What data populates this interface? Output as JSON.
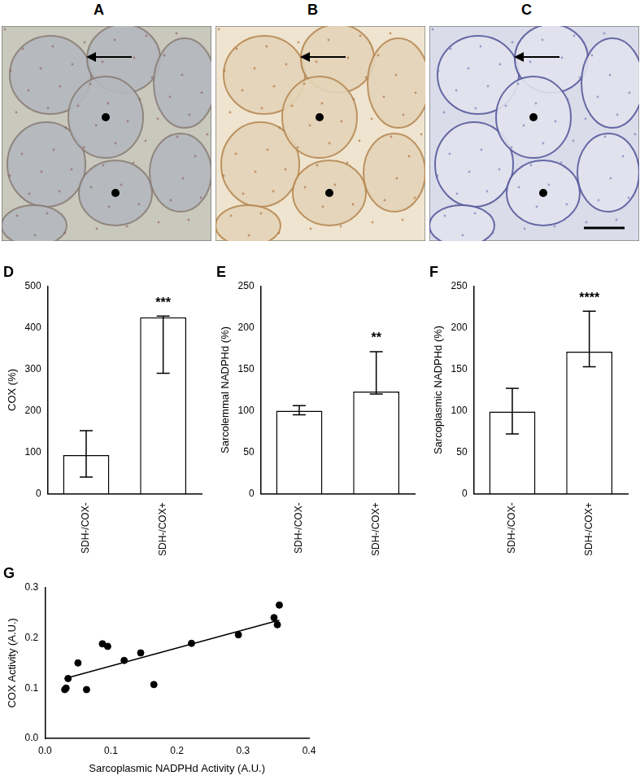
{
  "panels": [
    {
      "label": "A"
    },
    {
      "label": "B"
    },
    {
      "label": "C"
    }
  ],
  "chart_data": [
    {
      "type": "bar",
      "title": "D",
      "y_label": "COX (%)",
      "categories": [
        "SDH-/COX-",
        "SDH-/COX+"
      ],
      "values": [
        93,
        425
      ],
      "errors": [
        {
          "low": 40,
          "high": 152
        },
        {
          "low": 290,
          "high": 428
        }
      ],
      "color": "#ffffff",
      "ylim": [
        0,
        500
      ],
      "yticks": [
        0,
        100,
        200,
        300,
        400,
        500
      ],
      "grid": false,
      "annotations": [
        {
          "text": "***",
          "category": "SDH-/COX+"
        }
      ]
    },
    {
      "type": "bar",
      "title": "E",
      "y_label": "Sarcolemmal NADPHd (%)",
      "categories": [
        "SDH-/COX-",
        "SDH-/COX+"
      ],
      "values": [
        100,
        123
      ],
      "errors": [
        {
          "low": 95,
          "high": 106
        },
        {
          "low": 120,
          "high": 171
        }
      ],
      "color": "#ffffff",
      "ylim": [
        0,
        250
      ],
      "yticks": [
        0,
        50,
        100,
        150,
        200,
        250
      ],
      "grid": false,
      "annotations": [
        {
          "text": "**",
          "category": "SDH-/COX+"
        }
      ]
    },
    {
      "type": "bar",
      "title": "F",
      "y_label": "Sarcoplasmic NADPHd (%)",
      "categories": [
        "SDH-/COX-",
        "SDH-/COX+"
      ],
      "values": [
        99,
        171
      ],
      "errors": [
        {
          "low": 72,
          "high": 127
        },
        {
          "low": 153,
          "high": 220
        }
      ],
      "color": "#ffffff",
      "ylim": [
        0,
        250
      ],
      "yticks": [
        0,
        50,
        100,
        150,
        200,
        250
      ],
      "grid": false,
      "annotations": [
        {
          "text": "****",
          "category": "SDH-/COX+"
        }
      ]
    },
    {
      "type": "scatter",
      "title": "G",
      "x_label": "Sarcoplasmic NADPHd Activity (A.U.)",
      "y_label": "COX Activity (A.U.)",
      "x": [
        0.03,
        0.032,
        0.035,
        0.05,
        0.063,
        0.087,
        0.095,
        0.12,
        0.145,
        0.165,
        0.222,
        0.293,
        0.347,
        0.352,
        0.355
      ],
      "values": [
        0.097,
        0.1,
        0.119,
        0.15,
        0.097,
        0.188,
        0.183,
        0.155,
        0.17,
        0.107,
        0.189,
        0.206,
        0.24,
        0.226,
        0.265
      ],
      "fit_line": {
        "x": [
          0.03,
          0.355
        ],
        "y": [
          0.119,
          0.235
        ]
      },
      "color": "#000000",
      "marker": "circle",
      "line_style": "solid",
      "grid": false,
      "xlim": [
        0,
        0.4
      ],
      "xticks": [
        {
          "value": 0,
          "label": "0.0"
        },
        {
          "value": 0.1,
          "label": "0.1"
        },
        {
          "value": 0.2,
          "label": "0.2"
        },
        {
          "value": 0.3,
          "label": "0.3"
        },
        {
          "value": 0.4,
          "label": "0.4"
        }
      ],
      "ylim": [
        0,
        0.3
      ],
      "yticks": [
        {
          "value": 0,
          "label": "0.0"
        },
        {
          "value": 0.1,
          "label": "0.1"
        },
        {
          "value": 0.2,
          "label": "0.2"
        },
        {
          "value": 0.3,
          "label": "0.3"
        }
      ]
    }
  ]
}
